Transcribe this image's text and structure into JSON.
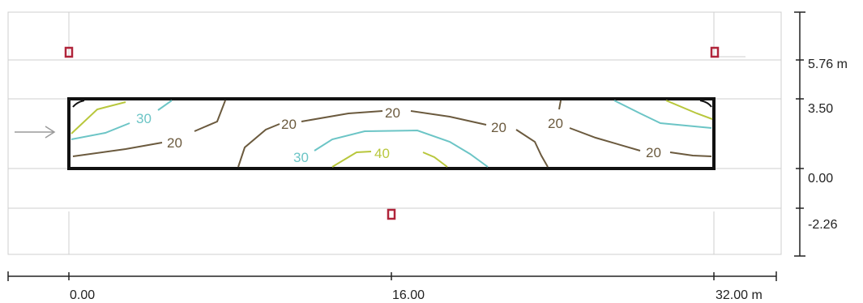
{
  "x_axis": {
    "ticks": [
      {
        "value": 0,
        "label": "0.00"
      },
      {
        "value": 16,
        "label": "16.00"
      },
      {
        "value": 32,
        "label": "32.00 m"
      }
    ]
  },
  "y_axis": {
    "ticks": [
      {
        "value": 5.76,
        "label": "5.76 m"
      },
      {
        "value": 3.5,
        "label": "3.50"
      },
      {
        "value": 0.0,
        "label": "0.00"
      },
      {
        "value": -2.26,
        "label": "-2.26"
      }
    ]
  },
  "contours": {
    "labels": [
      {
        "text": "30",
        "level": 30
      },
      {
        "text": "20",
        "level": 20
      },
      {
        "text": "20",
        "level": 20
      },
      {
        "text": "20",
        "level": 20
      },
      {
        "text": "20",
        "level": 20
      },
      {
        "text": "20",
        "level": 20
      },
      {
        "text": "20",
        "level": 20
      },
      {
        "text": "30",
        "level": 30
      },
      {
        "text": "40",
        "level": 40
      }
    ],
    "colors": {
      "20": "#6b5a3e",
      "30": "#6cc5c6",
      "40": "#b8c73c"
    }
  },
  "markers": {
    "color": "#b0243a"
  },
  "arrow": {
    "color": "#9a9a9a"
  }
}
